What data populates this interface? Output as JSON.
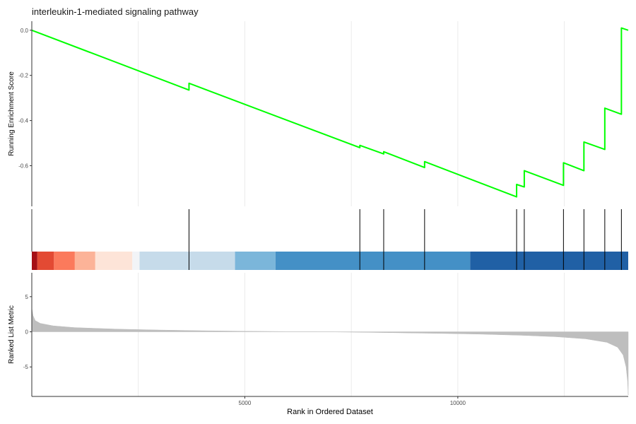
{
  "chart_data": {
    "type": "line",
    "title": "interleukin-1-mediated signaling pathway",
    "xlabel": "Rank in Ordered Dataset",
    "n_genes": 14000,
    "xlim": [
      0,
      14000
    ],
    "x_ticks": [
      5000,
      10000
    ],
    "x_tick_labels": [
      "5000",
      "10000"
    ],
    "colors": {
      "curve": "#00ff00",
      "hit_line": "#000000",
      "area": "#bebebe",
      "grid": "#ebebeb",
      "axis": "#333333",
      "tick_text": "#4d4d4d"
    },
    "panels": {
      "running_score": {
        "ylabel": "Running Enrichment Score",
        "ylim": [
          -0.78,
          0.04
        ],
        "y_ticks": [
          0.0,
          -0.2,
          -0.4,
          -0.6
        ],
        "y_tick_labels": [
          "0.0",
          "-0.2",
          "-0.4",
          "-0.6"
        ],
        "points": [
          [
            0,
            0.0
          ],
          [
            3690,
            -0.265
          ],
          [
            3690,
            -0.235
          ],
          [
            7700,
            -0.52
          ],
          [
            7700,
            -0.51
          ],
          [
            8260,
            -0.548
          ],
          [
            8260,
            -0.538
          ],
          [
            9220,
            -0.608
          ],
          [
            9220,
            -0.582
          ],
          [
            11380,
            -0.738
          ],
          [
            11380,
            -0.683
          ],
          [
            11560,
            -0.694
          ],
          [
            11560,
            -0.622
          ],
          [
            12480,
            -0.687
          ],
          [
            12480,
            -0.587
          ],
          [
            12960,
            -0.622
          ],
          [
            12960,
            -0.495
          ],
          [
            13450,
            -0.528
          ],
          [
            13450,
            -0.345
          ],
          [
            13840,
            -0.372
          ],
          [
            13840,
            0.01
          ],
          [
            14000,
            0.0
          ]
        ]
      },
      "hits": {
        "positions": [
          3690,
          7700,
          8260,
          9220,
          11380,
          11560,
          12480,
          12960,
          13450,
          13840
        ]
      },
      "color_band": {
        "segments": [
          {
            "from": 0,
            "to": 130,
            "color": "#a50f15"
          },
          {
            "from": 130,
            "to": 520,
            "color": "#e34a33"
          },
          {
            "from": 520,
            "to": 1010,
            "color": "#fb7a5c"
          },
          {
            "from": 1010,
            "to": 1490,
            "color": "#fcb398"
          },
          {
            "from": 1490,
            "to": 2360,
            "color": "#fde4d8"
          },
          {
            "from": 2360,
            "to": 2530,
            "color": "#f2f4f7"
          },
          {
            "from": 2530,
            "to": 4770,
            "color": "#c6dbea"
          },
          {
            "from": 4770,
            "to": 5720,
            "color": "#7bb6da"
          },
          {
            "from": 5720,
            "to": 10290,
            "color": "#4490c6"
          },
          {
            "from": 10290,
            "to": 14000,
            "color": "#2060a5"
          }
        ]
      },
      "ranked_metric": {
        "ylabel": "Ranked List Metric",
        "ylim": [
          -9.2,
          8.4
        ],
        "y_ticks": [
          5,
          0,
          -5
        ],
        "y_tick_labels": [
          "5",
          "0",
          "-5"
        ],
        "profile": [
          [
            0,
            3.4
          ],
          [
            30,
            2.3
          ],
          [
            80,
            1.6
          ],
          [
            200,
            1.2
          ],
          [
            500,
            0.85
          ],
          [
            1000,
            0.6
          ],
          [
            2000,
            0.38
          ],
          [
            3000,
            0.25
          ],
          [
            4000,
            0.15
          ],
          [
            5000,
            0.08
          ],
          [
            6000,
            0.03
          ],
          [
            6800,
            0.0
          ],
          [
            7500,
            -0.05
          ],
          [
            8500,
            -0.13
          ],
          [
            9500,
            -0.22
          ],
          [
            10500,
            -0.33
          ],
          [
            11500,
            -0.5
          ],
          [
            12300,
            -0.7
          ],
          [
            13000,
            -1.0
          ],
          [
            13500,
            -1.5
          ],
          [
            13750,
            -2.2
          ],
          [
            13880,
            -3.3
          ],
          [
            13950,
            -5.0
          ],
          [
            13985,
            -7.0
          ],
          [
            14000,
            -9.0
          ]
        ]
      }
    }
  }
}
